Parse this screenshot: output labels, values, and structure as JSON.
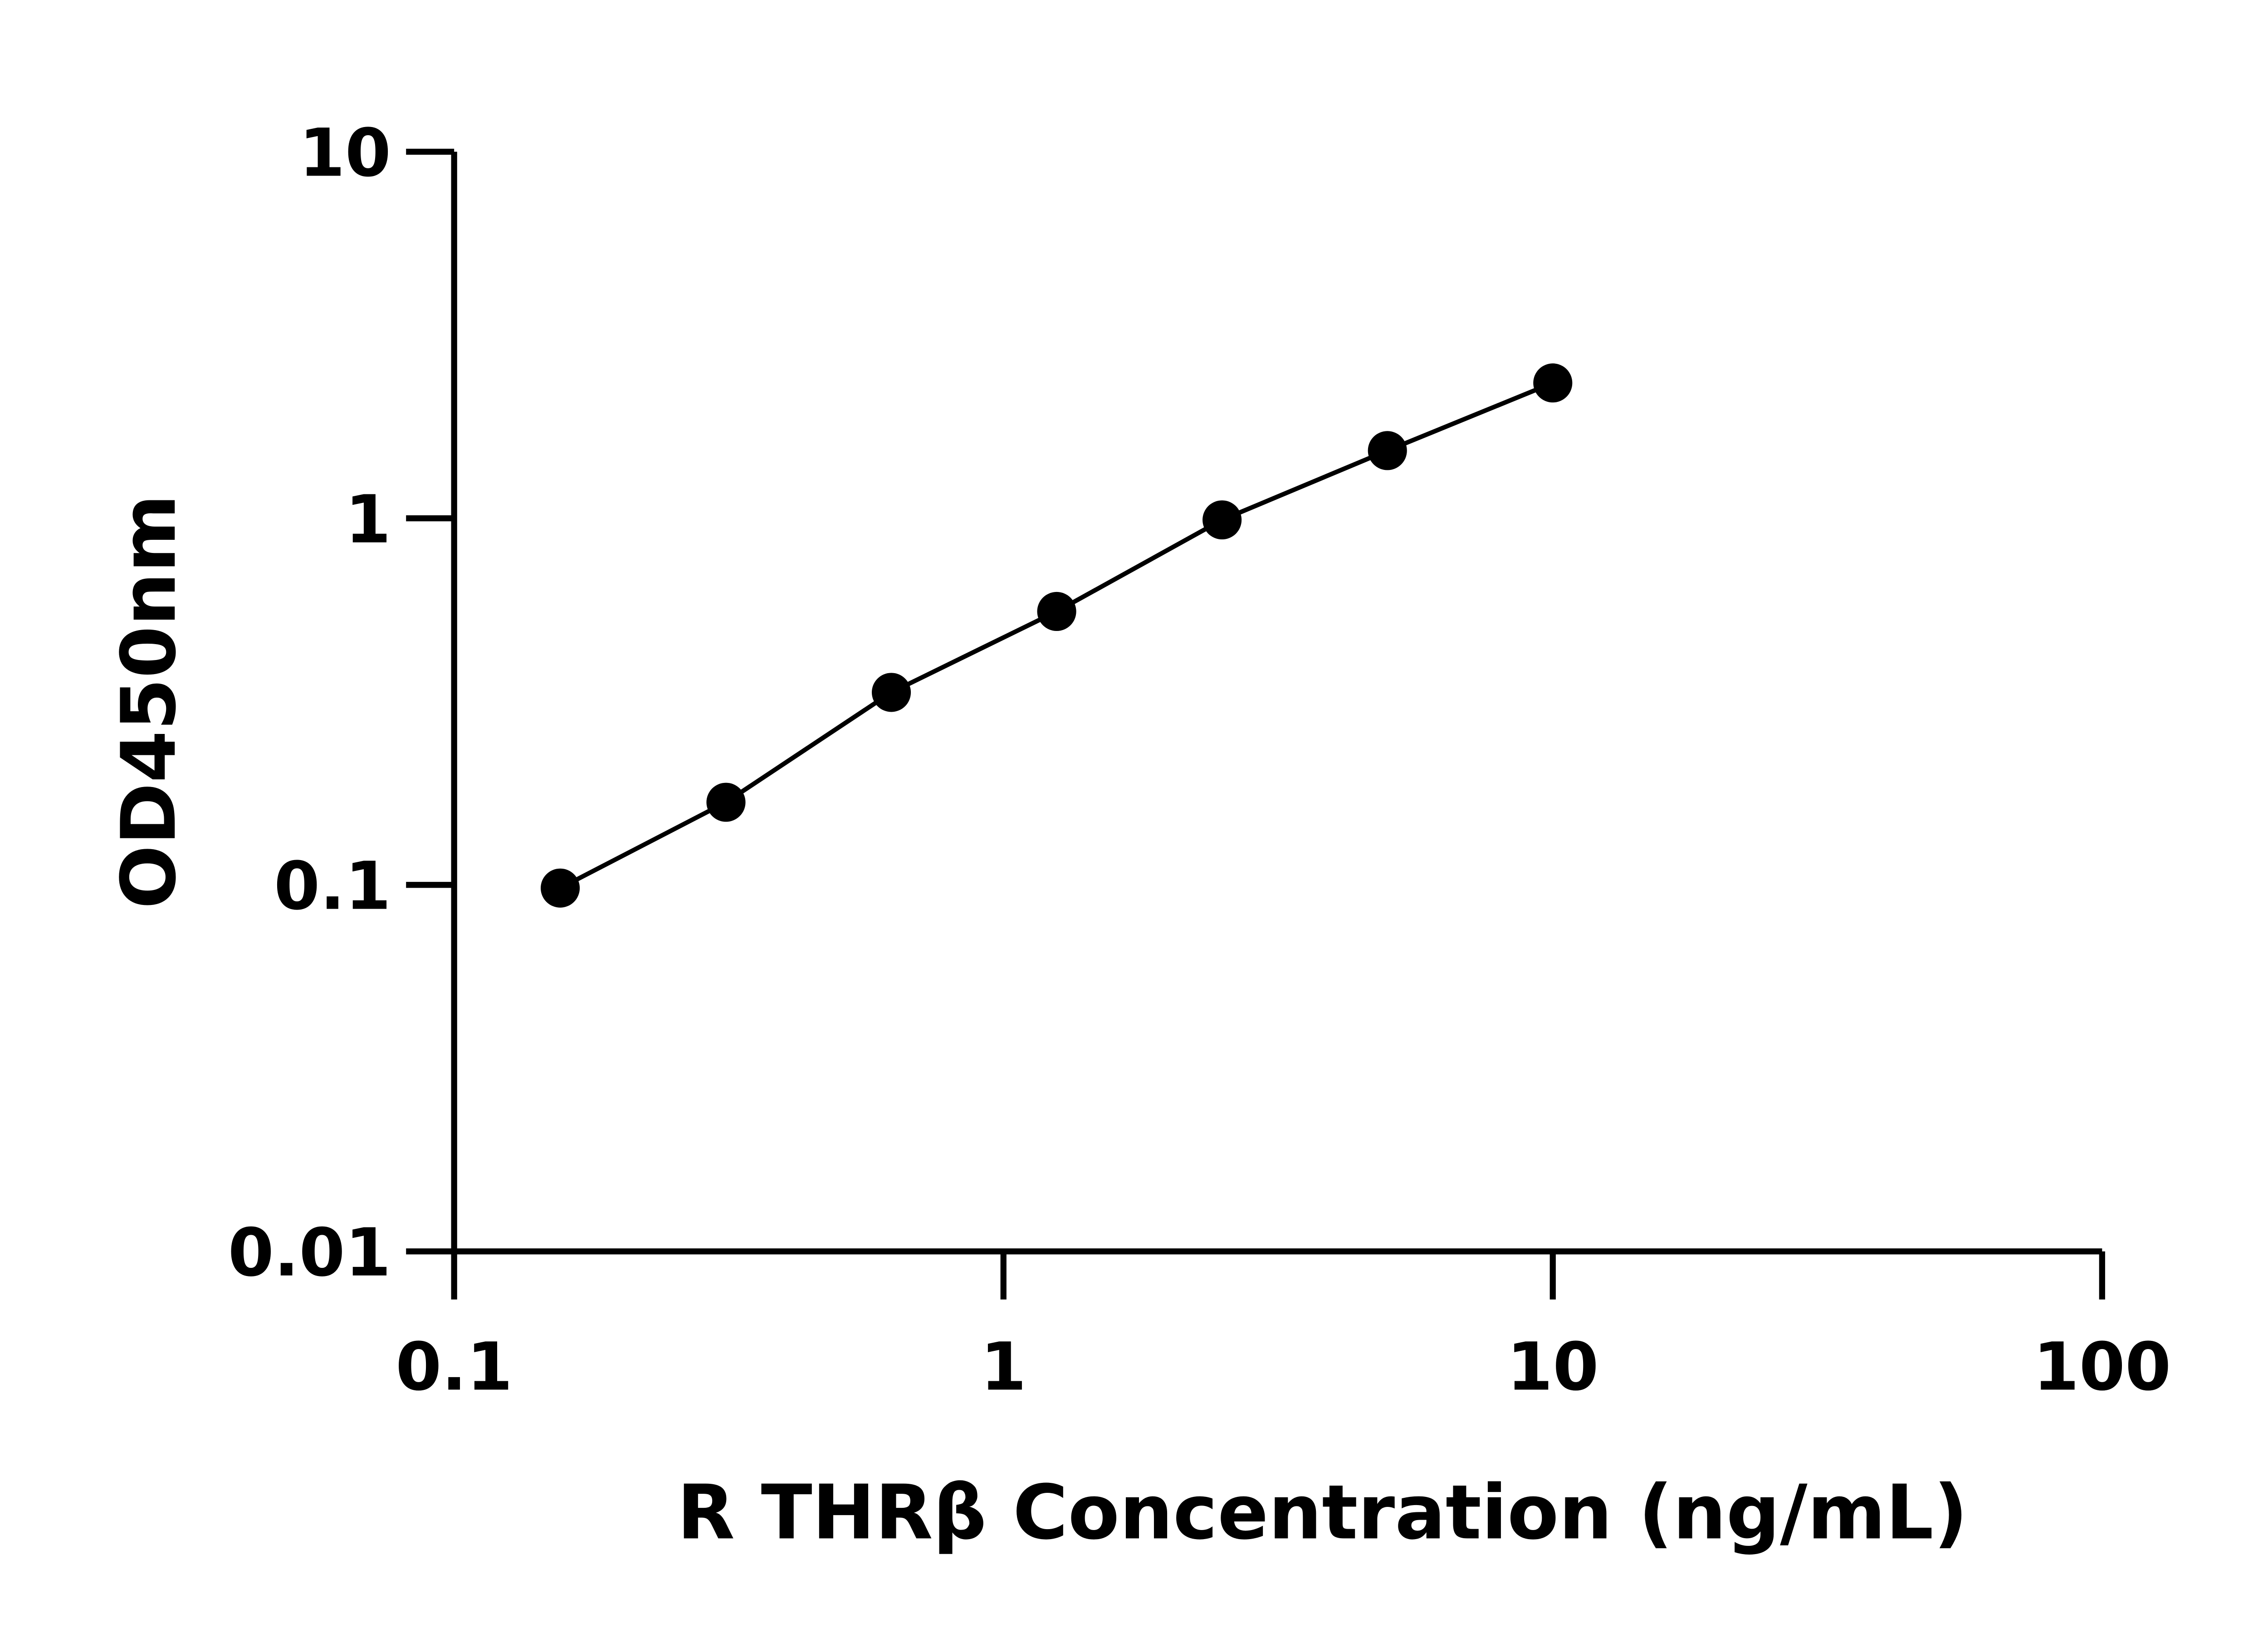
{
  "chart_data": {
    "type": "line",
    "title": "",
    "xlabel": "R THRβ Concentration (ng/mL)",
    "ylabel": "OD450nm",
    "x_scale": "log",
    "y_scale": "log",
    "xlim": [
      0.1,
      100
    ],
    "ylim": [
      0.01,
      10
    ],
    "x_ticks": [
      "0.1",
      "1",
      "10",
      "100"
    ],
    "y_ticks": [
      "0.01",
      "0.1",
      "1",
      "10"
    ],
    "grid": false,
    "series": [
      {
        "x": [
          0.156,
          0.3125,
          0.625,
          1.25,
          2.5,
          5,
          10
        ],
        "y": [
          0.098,
          0.168,
          0.335,
          0.557,
          0.99,
          1.53,
          2.34
        ],
        "marker": "circle",
        "color": "#000000"
      }
    ]
  }
}
